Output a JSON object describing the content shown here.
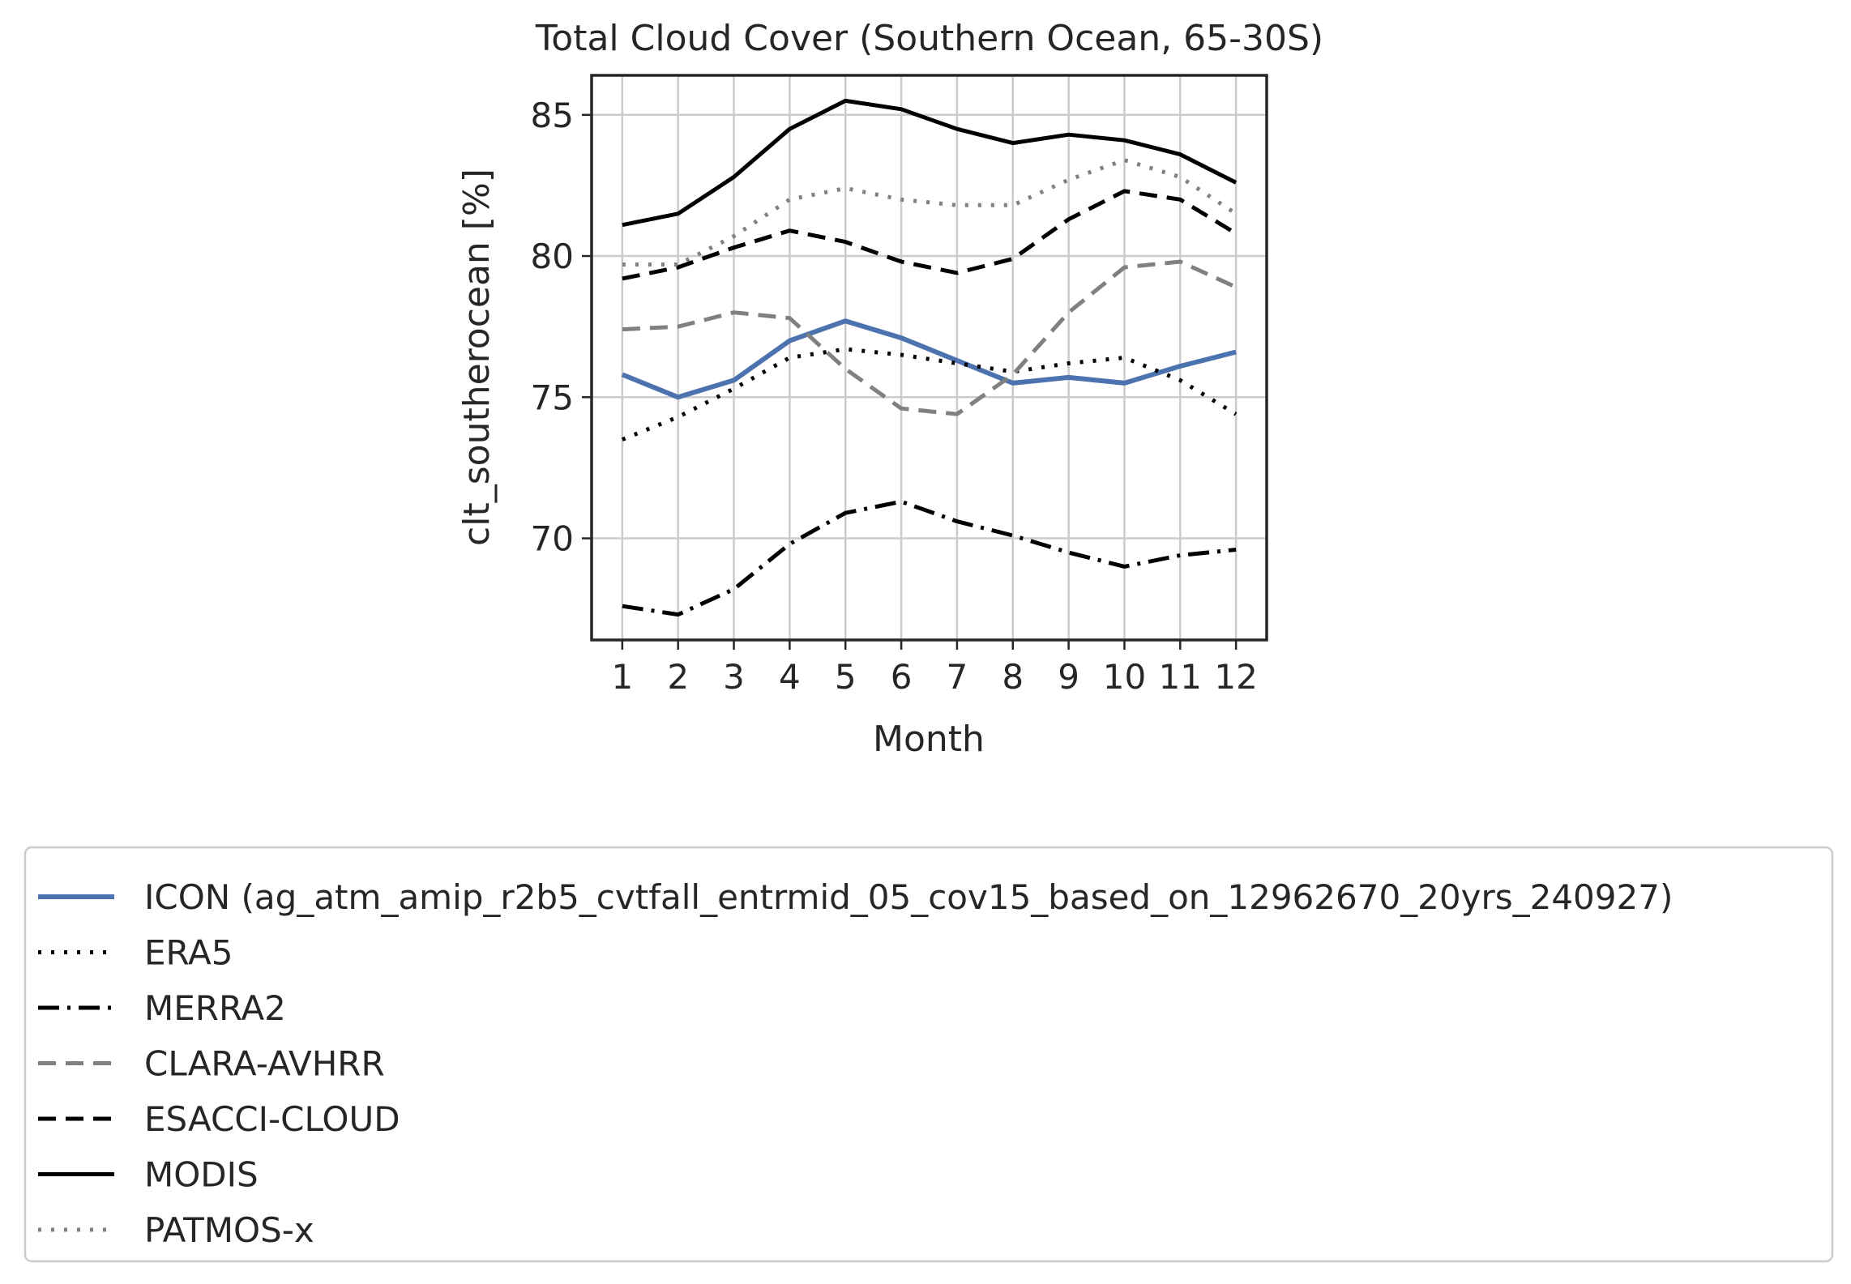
{
  "chart_data": {
    "type": "line",
    "title": "Total Cloud Cover (Southern Ocean, 65-30S)",
    "xlabel": "Month",
    "ylabel": "clt_southerocean [%]",
    "x": [
      1,
      2,
      3,
      4,
      5,
      6,
      7,
      8,
      9,
      10,
      11,
      12
    ],
    "xticks": [
      "1",
      "2",
      "3",
      "4",
      "5",
      "6",
      "7",
      "8",
      "9",
      "10",
      "11",
      "12"
    ],
    "yticks": [
      "70",
      "75",
      "80",
      "85"
    ],
    "ytick_values": [
      70,
      75,
      80,
      85
    ],
    "xlim": [
      0.45,
      12.55
    ],
    "ylim": [
      66.4,
      86.4
    ],
    "grid": true,
    "legend_position": "below",
    "series": [
      {
        "name": "ICON (ag_atm_amip_r2b5_cvtfall_entrmid_05_cov15_based_on_12962670_20yrs_240927)",
        "color": "#4c72b0",
        "style": "solid",
        "width": 6,
        "values": [
          75.8,
          75.0,
          75.6,
          77.0,
          77.7,
          77.1,
          76.3,
          75.5,
          75.7,
          75.5,
          76.1,
          76.6
        ]
      },
      {
        "name": "ERA5",
        "color": "#000000",
        "style": "dotted",
        "width": 5,
        "values": [
          73.5,
          74.3,
          75.3,
          76.4,
          76.7,
          76.5,
          76.2,
          75.9,
          76.2,
          76.4,
          75.6,
          74.4
        ]
      },
      {
        "name": "MERRA2",
        "color": "#000000",
        "style": "dashdot",
        "width": 5,
        "values": [
          67.6,
          67.3,
          68.2,
          69.8,
          70.9,
          71.3,
          70.6,
          70.1,
          69.5,
          69.0,
          69.4,
          69.6
        ]
      },
      {
        "name": "CLARA-AVHRR",
        "color": "#808080",
        "style": "dashed",
        "width": 5,
        "values": [
          77.4,
          77.5,
          78.0,
          77.8,
          76.0,
          74.6,
          74.4,
          75.8,
          78.0,
          79.6,
          79.8,
          78.9
        ]
      },
      {
        "name": "ESACCI-CLOUD",
        "color": "#000000",
        "style": "dashed",
        "width": 5,
        "values": [
          79.2,
          79.6,
          80.3,
          80.9,
          80.5,
          79.8,
          79.4,
          79.9,
          81.3,
          82.3,
          82.0,
          80.8
        ]
      },
      {
        "name": "MODIS",
        "color": "#000000",
        "style": "solid",
        "width": 5,
        "values": [
          81.1,
          81.5,
          82.8,
          84.5,
          85.5,
          85.2,
          84.5,
          84.0,
          84.3,
          84.1,
          83.6,
          82.6
        ]
      },
      {
        "name": "PATMOS-x",
        "color": "#808080",
        "style": "dotted",
        "width": 5,
        "values": [
          79.7,
          79.7,
          80.7,
          82.0,
          82.4,
          82.0,
          81.8,
          81.8,
          82.7,
          83.4,
          82.8,
          81.5
        ]
      }
    ]
  }
}
